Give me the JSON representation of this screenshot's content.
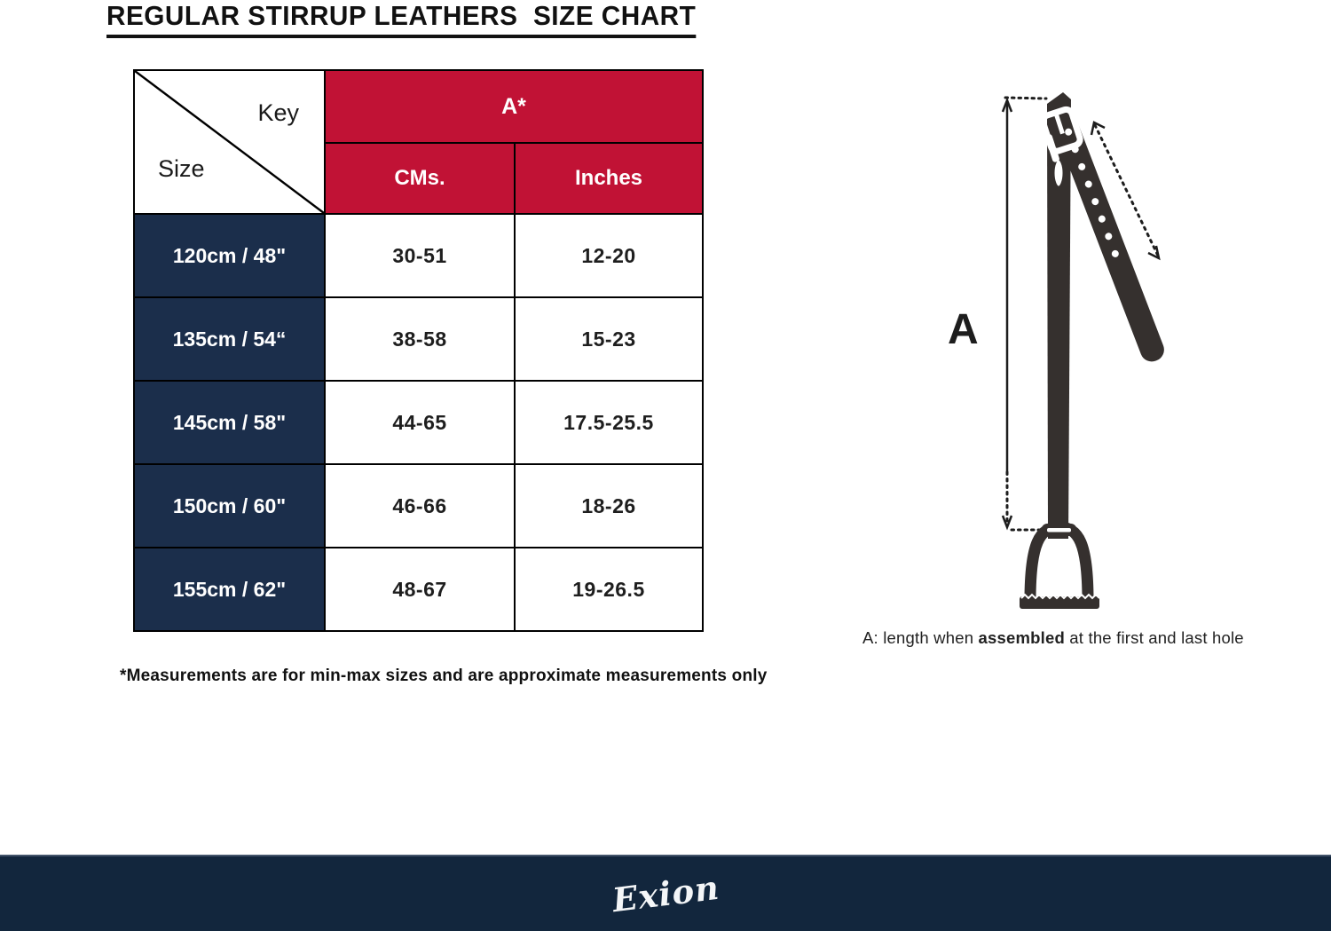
{
  "title": "REGULAR STIRRUP LEATHERS  SIZE CHART",
  "table": {
    "corner": {
      "top_right": "Key",
      "bottom_left": "Size"
    },
    "group_header": "A*",
    "columns": [
      "CMs.",
      "Inches"
    ],
    "rows": [
      {
        "size": "120cm / 48\"",
        "cms": "30-51",
        "inches": "12-20"
      },
      {
        "size": "135cm / 54“",
        "cms": "38-58",
        "inches": "15-23"
      },
      {
        "size": "145cm / 58\"",
        "cms": "44-65",
        "inches": "17.5-25.5"
      },
      {
        "size": "150cm / 60\"",
        "cms": "46-66",
        "inches": "18-26"
      },
      {
        "size": "155cm / 62\"",
        "cms": "48-67",
        "inches": "19-26.5"
      }
    ]
  },
  "footnote": "*Measurements are for min-max sizes and are approximate measurements only",
  "diagram": {
    "label": "A",
    "caption_prefix": "A: length when ",
    "caption_bold": "assembled",
    "caption_suffix": " at the first and last hole"
  },
  "footer": {
    "brand": "Exion"
  },
  "colors": {
    "header_red": "#C11235",
    "row_navy": "#1B2E4B",
    "footer_navy": "#12263D",
    "strap_dark": "#35302E"
  }
}
